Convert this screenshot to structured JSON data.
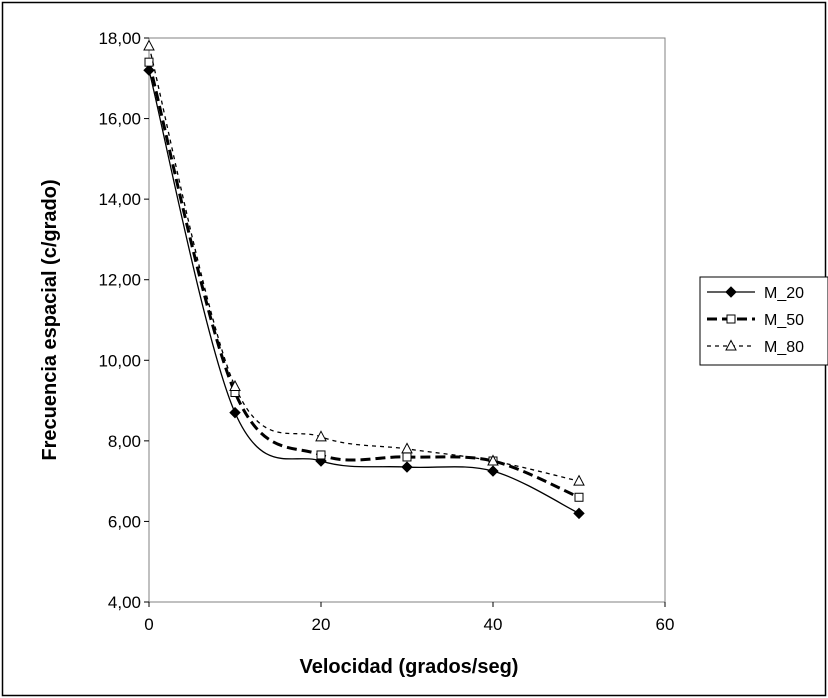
{
  "chart_data": {
    "type": "line",
    "title": "",
    "xlabel": "Velocidad (grados/seg)",
    "ylabel": "Frecuencia espacial (c/grado)",
    "xlim": [
      0,
      60
    ],
    "ylim": [
      4,
      18
    ],
    "x_ticks": [
      "0",
      "20",
      "40",
      "60"
    ],
    "y_ticks": [
      "4,00",
      "6,00",
      "8,00",
      "10,00",
      "12,00",
      "14,00",
      "16,00",
      "18,00"
    ],
    "grid": false,
    "legend_position": "right",
    "series": [
      {
        "name": "M_20",
        "x": [
          0,
          10,
          20,
          30,
          40,
          50
        ],
        "y": [
          17.2,
          8.7,
          7.5,
          7.35,
          7.25,
          6.2
        ],
        "marker": "diamond-filled",
        "line_style": "solid",
        "color": "#000000"
      },
      {
        "name": "M_50",
        "x": [
          0,
          10,
          20,
          30,
          40,
          50
        ],
        "y": [
          17.4,
          9.2,
          7.65,
          7.6,
          7.5,
          6.6
        ],
        "marker": "square-open",
        "line_style": "long-dash-bold",
        "color": "#000000"
      },
      {
        "name": "M_80",
        "x": [
          0,
          10,
          20,
          30,
          40,
          50
        ],
        "y": [
          17.8,
          9.35,
          8.1,
          7.8,
          7.5,
          7.0
        ],
        "marker": "triangle-open",
        "line_style": "short-dash",
        "color": "#000000"
      }
    ]
  }
}
